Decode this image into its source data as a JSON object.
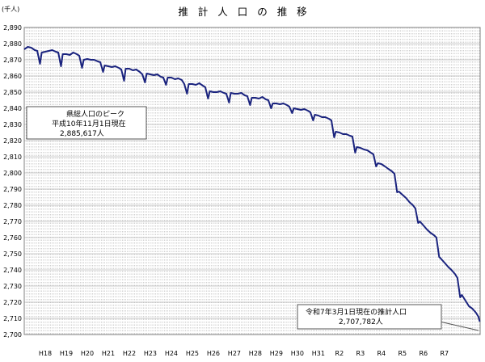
{
  "chart_data": {
    "type": "line",
    "title": "推 計 人 口 の 推 移",
    "unit_label": "(千人)",
    "ylabel": "",
    "xlabel": "",
    "ylim": [
      2700,
      2890
    ],
    "yticks": [
      2890,
      2880,
      2870,
      2860,
      2850,
      2840,
      2830,
      2820,
      2810,
      2800,
      2790,
      2780,
      2770,
      2760,
      2750,
      2740,
      2730,
      2720,
      2710,
      2700
    ],
    "x_tick_labels": [
      "H18",
      "H19",
      "H20",
      "H21",
      "H22",
      "H23",
      "H24",
      "H25",
      "H26",
      "H27",
      "H28",
      "H29",
      "H30",
      "H31",
      "R2",
      "R3",
      "R4",
      "R5",
      "R6",
      "R7"
    ],
    "x_start_year": 2006,
    "grid": true,
    "line_color": "#1a237e",
    "series": [
      {
        "points": [
          [
            2005.0,
            2876.5
          ],
          [
            2005.17,
            2878.0
          ],
          [
            2005.33,
            2877.5
          ],
          [
            2005.5,
            2876.0
          ],
          [
            2005.62,
            2875.5
          ],
          [
            2005.75,
            2867.5
          ],
          [
            2005.83,
            2874.5
          ],
          [
            2006.0,
            2875.0
          ],
          [
            2006.17,
            2875.5
          ],
          [
            2006.33,
            2876.0
          ],
          [
            2006.5,
            2875.0
          ],
          [
            2006.62,
            2874.5
          ],
          [
            2006.75,
            2866.0
          ],
          [
            2006.83,
            2873.5
          ],
          [
            2007.0,
            2873.5
          ],
          [
            2007.17,
            2873.0
          ],
          [
            2007.33,
            2874.5
          ],
          [
            2007.5,
            2873.5
          ],
          [
            2007.62,
            2872.5
          ],
          [
            2007.75,
            2865.0
          ],
          [
            2007.83,
            2870.0
          ],
          [
            2008.0,
            2870.5
          ],
          [
            2008.17,
            2870.0
          ],
          [
            2008.33,
            2870.0
          ],
          [
            2008.5,
            2869.0
          ],
          [
            2008.62,
            2868.5
          ],
          [
            2008.75,
            2862.5
          ],
          [
            2008.83,
            2866.5
          ],
          [
            2009.0,
            2866.0
          ],
          [
            2009.17,
            2865.5
          ],
          [
            2009.33,
            2866.0
          ],
          [
            2009.5,
            2865.0
          ],
          [
            2009.62,
            2864.0
          ],
          [
            2009.75,
            2857.0
          ],
          [
            2009.83,
            2864.5
          ],
          [
            2010.0,
            2864.5
          ],
          [
            2010.17,
            2863.5
          ],
          [
            2010.33,
            2864.0
          ],
          [
            2010.5,
            2862.5
          ],
          [
            2010.62,
            2861.0
          ],
          [
            2010.75,
            2856.0
          ],
          [
            2010.83,
            2861.5
          ],
          [
            2011.0,
            2861.0
          ],
          [
            2011.17,
            2860.5
          ],
          [
            2011.33,
            2861.0
          ],
          [
            2011.5,
            2859.5
          ],
          [
            2011.62,
            2859.0
          ],
          [
            2011.75,
            2854.5
          ],
          [
            2011.83,
            2859.0
          ],
          [
            2012.0,
            2859.0
          ],
          [
            2012.17,
            2858.0
          ],
          [
            2012.33,
            2858.5
          ],
          [
            2012.5,
            2857.5
          ],
          [
            2012.62,
            2855.0
          ],
          [
            2012.75,
            2849.0
          ],
          [
            2012.83,
            2855.0
          ],
          [
            2013.0,
            2855.0
          ],
          [
            2013.17,
            2854.5
          ],
          [
            2013.33,
            2855.5
          ],
          [
            2013.5,
            2854.0
          ],
          [
            2013.62,
            2853.0
          ],
          [
            2013.75,
            2846.0
          ],
          [
            2013.83,
            2850.5
          ],
          [
            2014.0,
            2850.0
          ],
          [
            2014.17,
            2850.0
          ],
          [
            2014.33,
            2850.5
          ],
          [
            2014.5,
            2849.5
          ],
          [
            2014.62,
            2849.0
          ],
          [
            2014.75,
            2843.5
          ],
          [
            2014.83,
            2849.5
          ],
          [
            2015.0,
            2849.0
          ],
          [
            2015.17,
            2849.0
          ],
          [
            2015.33,
            2849.5
          ],
          [
            2015.5,
            2848.0
          ],
          [
            2015.62,
            2847.5
          ],
          [
            2015.75,
            2842.0
          ],
          [
            2015.83,
            2846.5
          ],
          [
            2016.0,
            2846.5
          ],
          [
            2016.17,
            2846.0
          ],
          [
            2016.33,
            2847.0
          ],
          [
            2016.5,
            2845.5
          ],
          [
            2016.62,
            2845.0
          ],
          [
            2016.75,
            2840.0
          ],
          [
            2016.83,
            2843.0
          ],
          [
            2017.0,
            2843.0
          ],
          [
            2017.17,
            2842.5
          ],
          [
            2017.33,
            2843.0
          ],
          [
            2017.5,
            2842.0
          ],
          [
            2017.62,
            2841.0
          ],
          [
            2017.75,
            2837.0
          ],
          [
            2017.83,
            2840.0
          ],
          [
            2018.0,
            2839.5
          ],
          [
            2018.17,
            2839.0
          ],
          [
            2018.33,
            2839.5
          ],
          [
            2018.5,
            2838.5
          ],
          [
            2018.62,
            2837.5
          ],
          [
            2018.75,
            2832.5
          ],
          [
            2018.83,
            2836.0
          ],
          [
            2019.0,
            2835.5
          ],
          [
            2019.17,
            2834.5
          ],
          [
            2019.33,
            2834.5
          ],
          [
            2019.5,
            2833.5
          ],
          [
            2019.62,
            2832.5
          ],
          [
            2019.75,
            2822.0
          ],
          [
            2019.83,
            2825.5
          ],
          [
            2020.0,
            2825.0
          ],
          [
            2020.17,
            2824.0
          ],
          [
            2020.33,
            2824.0
          ],
          [
            2020.5,
            2823.0
          ],
          [
            2020.62,
            2822.5
          ],
          [
            2020.75,
            2812.5
          ],
          [
            2020.83,
            2816.0
          ],
          [
            2021.0,
            2815.5
          ],
          [
            2021.17,
            2814.5
          ],
          [
            2021.33,
            2814.0
          ],
          [
            2021.5,
            2812.5
          ],
          [
            2021.62,
            2811.5
          ],
          [
            2021.75,
            2804.0
          ],
          [
            2021.83,
            2806.0
          ],
          [
            2022.0,
            2805.5
          ],
          [
            2022.17,
            2804.0
          ],
          [
            2022.33,
            2802.5
          ],
          [
            2022.5,
            2801.0
          ],
          [
            2022.62,
            2799.5
          ],
          [
            2022.75,
            2788.0
          ],
          [
            2022.83,
            2788.5
          ],
          [
            2023.0,
            2786.5
          ],
          [
            2023.17,
            2784.5
          ],
          [
            2023.33,
            2782.0
          ],
          [
            2023.5,
            2780.0
          ],
          [
            2023.62,
            2778.0
          ],
          [
            2023.75,
            2769.0
          ],
          [
            2023.83,
            2770.0
          ],
          [
            2024.0,
            2767.5
          ],
          [
            2024.17,
            2765.0
          ],
          [
            2024.33,
            2763.0
          ],
          [
            2024.5,
            2761.5
          ],
          [
            2024.62,
            2760.0
          ],
          [
            2024.75,
            2748.0
          ],
          [
            2024.83,
            2747.0
          ],
          [
            2025.0,
            2744.5
          ],
          [
            2025.17,
            2742.0
          ],
          [
            2025.33,
            2740.0
          ],
          [
            2025.5,
            2737.5
          ],
          [
            2025.62,
            2735.0
          ],
          [
            2025.75,
            2723.0
          ],
          [
            2025.83,
            2724.5
          ],
          [
            2026.0,
            2721.0
          ],
          [
            2026.17,
            2717.5
          ],
          [
            2026.33,
            2716.0
          ],
          [
            2026.5,
            2713.5
          ],
          [
            2026.62,
            2711.0
          ],
          [
            2026.68,
            2708.0
          ]
        ]
      }
    ],
    "annotations": [
      {
        "name": "peak",
        "lines": [
          "県総人口のピーク",
          "平成10年11月1日現在",
          "2,885,617人"
        ],
        "position": "top-left"
      },
      {
        "name": "current",
        "lines": [
          "令和7年3月1日現在の推計人口",
          "2,707,782人"
        ],
        "position": "bottom-right"
      }
    ]
  }
}
